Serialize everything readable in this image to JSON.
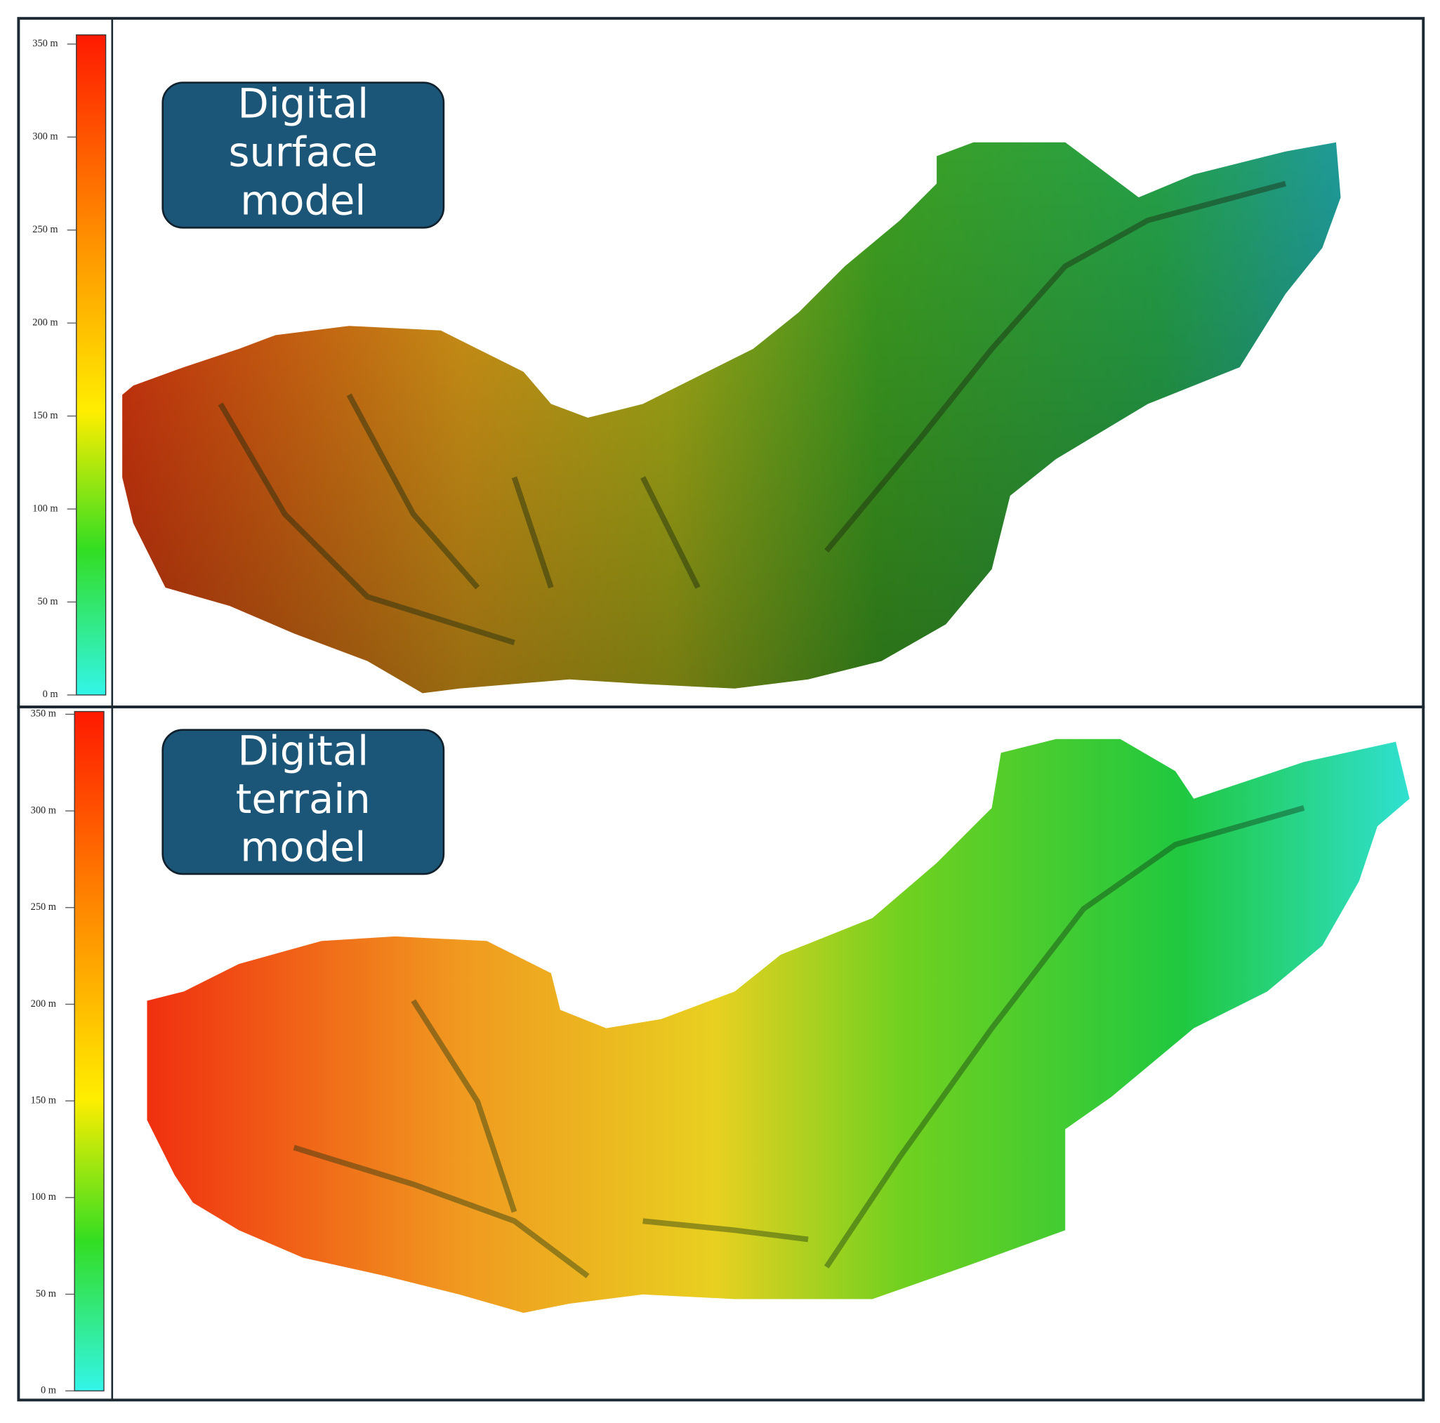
{
  "panels": [
    {
      "title_lines": [
        "Digital",
        "surface",
        "model"
      ],
      "scale": {
        "range": [
          0,
          350
        ],
        "ticks": [
          {
            "value": 350,
            "label": "350 m"
          },
          {
            "value": 300,
            "label": "300 m"
          },
          {
            "value": 250,
            "label": "250 m"
          },
          {
            "value": 200,
            "label": "200 m"
          },
          {
            "value": 150,
            "label": "150 m"
          },
          {
            "value": 100,
            "label": "100 m"
          },
          {
            "value": 50,
            "label": "50 m"
          },
          {
            "value": 0,
            "label": "0 m"
          }
        ]
      }
    },
    {
      "title_lines": [
        "Digital",
        "terrain",
        "model"
      ],
      "scale": {
        "range": [
          0,
          350
        ],
        "ticks": [
          {
            "value": 350,
            "label": "350 m"
          },
          {
            "value": 300,
            "label": "300 m"
          },
          {
            "value": 250,
            "label": "250 m"
          },
          {
            "value": 200,
            "label": "200 m"
          },
          {
            "value": 150,
            "label": "150 m"
          },
          {
            "value": 100,
            "label": "100 m"
          },
          {
            "value": 50,
            "label": "50 m"
          },
          {
            "value": 0,
            "label": "0 m"
          }
        ]
      }
    }
  ]
}
